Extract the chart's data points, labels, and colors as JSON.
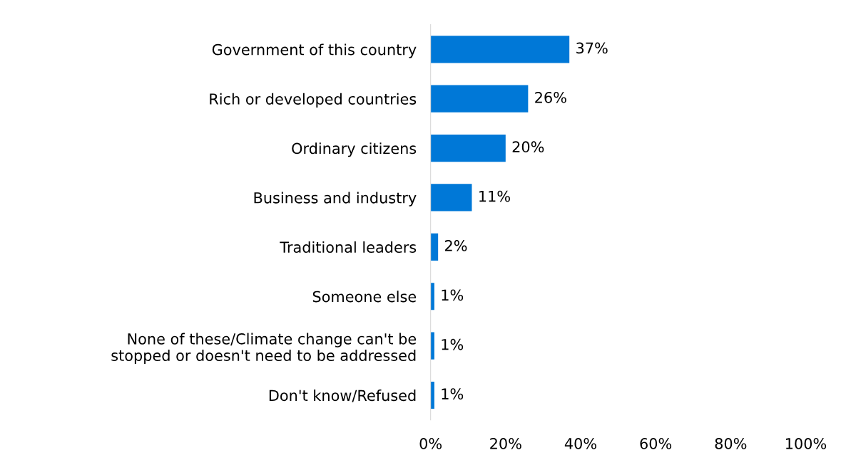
{
  "chart_data": {
    "type": "bar",
    "orientation": "horizontal",
    "categories": [
      "Government of this country",
      "Rich or developed countries",
      "Ordinary citizens",
      "Business and industry",
      "Traditional leaders",
      "Someone else",
      "None of these/Climate change can't be\nstopped or doesn't need to be addressed",
      "Don't know/Refused"
    ],
    "values": [
      37,
      26,
      20,
      11,
      2,
      1,
      1,
      1
    ],
    "value_labels": [
      "37%",
      "26%",
      "20%",
      "11%",
      "2%",
      "1%",
      "1%",
      "1%"
    ],
    "color": "#0078d7",
    "xlim": [
      0,
      100
    ],
    "xticks": [
      {
        "value": 0,
        "label": "0%"
      },
      {
        "value": 20,
        "label": "20%"
      },
      {
        "value": 40,
        "label": "40%"
      },
      {
        "value": 60,
        "label": "60%"
      },
      {
        "value": 80,
        "label": "80%"
      },
      {
        "value": 100,
        "label": "100%"
      }
    ],
    "grid": false,
    "legend": false
  }
}
